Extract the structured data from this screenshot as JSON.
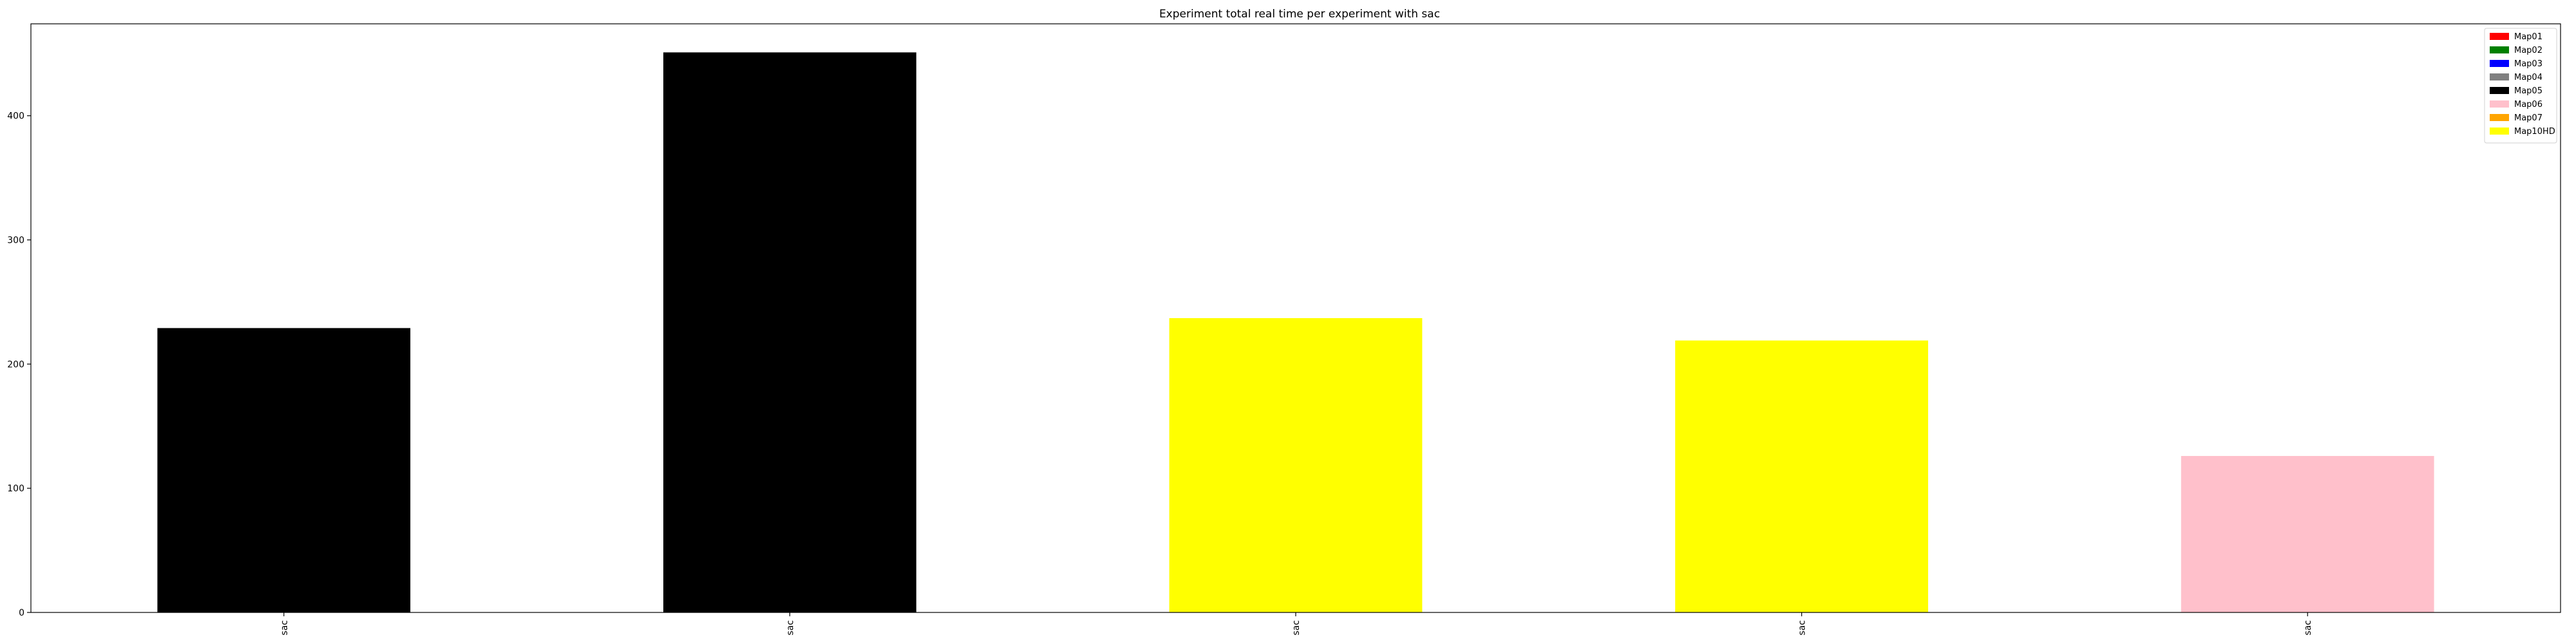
{
  "chart_data": {
    "type": "bar",
    "title": "Experiment total real time per experiment with sac",
    "xlabel": "",
    "ylabel": "",
    "categories": [
      "sac",
      "sac",
      "sac",
      "sac",
      "sac"
    ],
    "values": [
      229,
      451,
      237,
      219,
      126
    ],
    "bar_colors": [
      "#000000",
      "#000000",
      "#ffff00",
      "#ffff00",
      "#ffc0cb"
    ],
    "ylim": [
      0,
      474
    ],
    "yticks": [
      0,
      100,
      200,
      300,
      400
    ],
    "grid": false,
    "legend": {
      "placement": "top-right",
      "entries": [
        {
          "label": "Map01",
          "color": "#ff0000"
        },
        {
          "label": "Map02",
          "color": "#008000"
        },
        {
          "label": "Map03",
          "color": "#0000ff"
        },
        {
          "label": "Map04",
          "color": "#808080"
        },
        {
          "label": "Map05",
          "color": "#000000"
        },
        {
          "label": "Map06",
          "color": "#ffc0cb"
        },
        {
          "label": "Map07",
          "color": "#ffa500"
        },
        {
          "label": "Map10HD",
          "color": "#ffff00"
        }
      ]
    }
  }
}
